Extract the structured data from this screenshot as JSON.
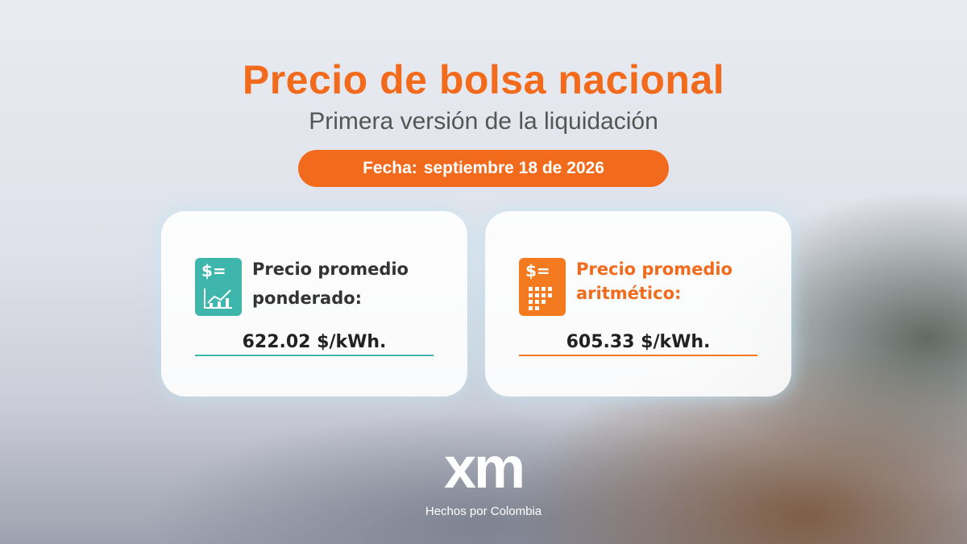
{
  "header": {
    "title": "Precio de bolsa nacional",
    "subtitle": "Primera versión de la liquidación",
    "date_label": "Fecha:",
    "date": "septiembre 18 de 2026"
  },
  "cards": [
    {
      "icon_symbol": "$=",
      "label_line1": "Precio promedio",
      "label_line2": "ponderado:",
      "value": "622.02 $/kWh."
    },
    {
      "icon_symbol": "$=",
      "label_line1": "Precio promedio",
      "label_line2": "aritmético:",
      "value": "605.33 $/kWh."
    }
  ],
  "footer": {
    "logo": "xm",
    "tagline": "Hechos por Colombia"
  }
}
